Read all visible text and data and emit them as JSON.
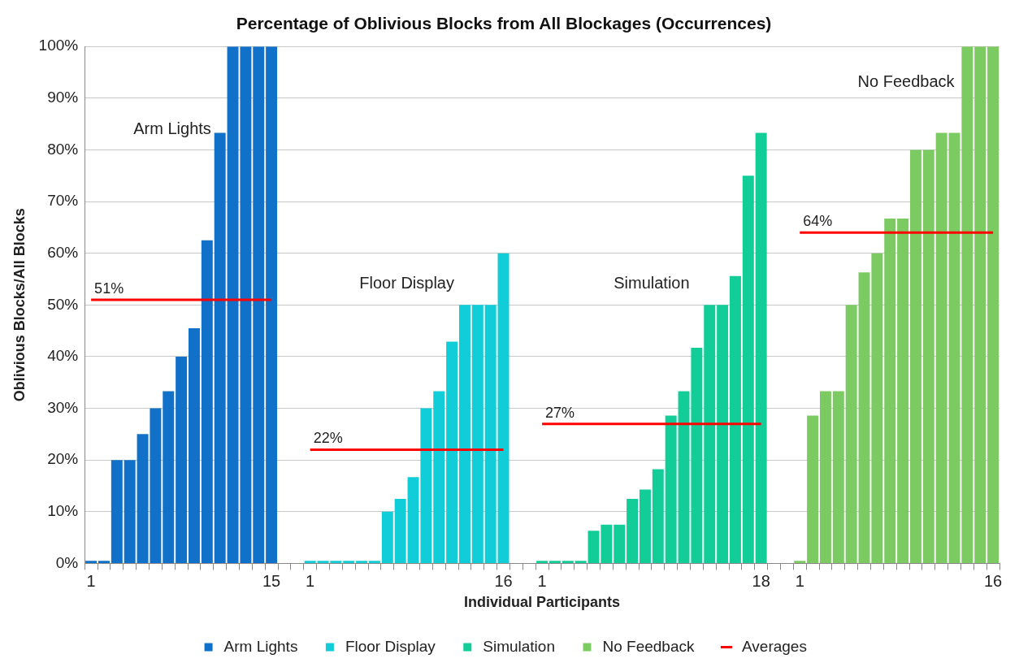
{
  "chart_data": {
    "type": "bar",
    "title": "Percentage of Oblivious Blocks from All Blockages (Occurrences)",
    "xlabel": "Individual Participants",
    "ylabel": "Oblivious Blocks/All Blocks",
    "categories": [
      "1",
      null,
      null,
      null,
      null,
      null,
      null,
      null,
      null,
      null,
      null,
      null,
      null,
      null,
      "15",
      null,
      null,
      "1",
      null,
      null,
      null,
      null,
      null,
      null,
      null,
      null,
      null,
      null,
      null,
      null,
      null,
      null,
      "16",
      null,
      null,
      "1",
      null,
      null,
      null,
      null,
      null,
      null,
      null,
      null,
      null,
      null,
      null,
      null,
      null,
      null,
      null,
      null,
      "18",
      null,
      null,
      "1",
      null,
      null,
      null,
      null,
      null,
      null,
      null,
      null,
      null,
      null,
      null,
      null,
      null,
      null,
      "16"
    ],
    "series": [
      {
        "name": "Arm Lights",
        "color": "#1170c8",
        "values": [
          0.5,
          0.5,
          20,
          20,
          25,
          30,
          33.3,
          40,
          45.5,
          62.5,
          83.3,
          100,
          100,
          100,
          100,
          null,
          null,
          null,
          null,
          null,
          null,
          null,
          null,
          null,
          null,
          null,
          null,
          null,
          null,
          null,
          null,
          null,
          null,
          null,
          null,
          null,
          null,
          null,
          null,
          null,
          null,
          null,
          null,
          null,
          null,
          null,
          null,
          null,
          null,
          null,
          null,
          null,
          null,
          null,
          null,
          null,
          null,
          null,
          null,
          null,
          null,
          null,
          null,
          null,
          null,
          null,
          null,
          null,
          null,
          null,
          null
        ]
      },
      {
        "name": "Floor Display",
        "color": "#10cdd8",
        "values": [
          null,
          null,
          null,
          null,
          null,
          null,
          null,
          null,
          null,
          null,
          null,
          null,
          null,
          null,
          null,
          null,
          null,
          0.5,
          0.5,
          0.5,
          0.5,
          0.5,
          0.5,
          10,
          12.5,
          16.7,
          30,
          33.3,
          42.9,
          50,
          50,
          50,
          60,
          null,
          null,
          null,
          null,
          null,
          null,
          null,
          null,
          null,
          null,
          null,
          null,
          null,
          null,
          null,
          null,
          null,
          null,
          null,
          null,
          null,
          null,
          null,
          null,
          null,
          null,
          null,
          null,
          null,
          null,
          null,
          null,
          null,
          null,
          null,
          null,
          null,
          null
        ]
      },
      {
        "name": "Simulation",
        "color": "#12cd98",
        "values": [
          null,
          null,
          null,
          null,
          null,
          null,
          null,
          null,
          null,
          null,
          null,
          null,
          null,
          null,
          null,
          null,
          null,
          null,
          null,
          null,
          null,
          null,
          null,
          null,
          null,
          null,
          null,
          null,
          null,
          null,
          null,
          null,
          null,
          null,
          null,
          0.5,
          0.5,
          0.5,
          0.5,
          6.3,
          7.5,
          7.5,
          12.5,
          14.3,
          18.2,
          28.6,
          33.3,
          41.7,
          50,
          50,
          55.6,
          75,
          83.3,
          null,
          null,
          null,
          null,
          null,
          null,
          null,
          null,
          null,
          null,
          null,
          null,
          null,
          null,
          null,
          null,
          null,
          null
        ]
      },
      {
        "name": "No Feedback",
        "color": "#7cca62",
        "values": [
          null,
          null,
          null,
          null,
          null,
          null,
          null,
          null,
          null,
          null,
          null,
          null,
          null,
          null,
          null,
          null,
          null,
          null,
          null,
          null,
          null,
          null,
          null,
          null,
          null,
          null,
          null,
          null,
          null,
          null,
          null,
          null,
          null,
          null,
          null,
          null,
          null,
          null,
          null,
          null,
          null,
          null,
          null,
          null,
          null,
          null,
          null,
          null,
          null,
          null,
          null,
          null,
          null,
          null,
          null,
          0.5,
          28.6,
          33.3,
          33.3,
          50,
          56.3,
          60,
          66.7,
          66.7,
          80,
          80,
          83.3,
          83.3,
          100,
          100,
          100
        ]
      },
      {
        "name": "Averages",
        "type": "line",
        "color": "#ff0000",
        "values": [
          51,
          51,
          51,
          51,
          51,
          51,
          51,
          51,
          51,
          51,
          51,
          51,
          51,
          51,
          51,
          null,
          null,
          22,
          22,
          22,
          22,
          22,
          22,
          22,
          22,
          22,
          22,
          22,
          22,
          22,
          22,
          22,
          22,
          null,
          null,
          27,
          27,
          27,
          27,
          27,
          27,
          27,
          27,
          27,
          27,
          27,
          27,
          27,
          27,
          27,
          27,
          27,
          27,
          null,
          null,
          64,
          64,
          64,
          64,
          64,
          64,
          64,
          64,
          64,
          64,
          64,
          64,
          64,
          64,
          64,
          64
        ],
        "value_labels": [
          "51%",
          null,
          null,
          null,
          null,
          null,
          null,
          null,
          null,
          null,
          null,
          null,
          null,
          null,
          null,
          null,
          null,
          "22%",
          null,
          null,
          null,
          null,
          null,
          null,
          null,
          null,
          null,
          null,
          null,
          null,
          null,
          null,
          null,
          null,
          null,
          "27%",
          null,
          null,
          null,
          null,
          null,
          null,
          null,
          null,
          null,
          null,
          null,
          null,
          null,
          null,
          null,
          null,
          null,
          null,
          null,
          "64%",
          null,
          null,
          null,
          null,
          null,
          null,
          null,
          null,
          null,
          null,
          null,
          null,
          null,
          null,
          null
        ]
      }
    ],
    "annotations": [
      "Arm Lights",
      "Floor Display",
      "Simulation",
      "No Feedback"
    ],
    "ylim": [
      0,
      100
    ],
    "yticks": [
      {
        "value": 0,
        "label": "0%"
      },
      {
        "value": 10,
        "label": "10%"
      },
      {
        "value": 20,
        "label": "20%"
      },
      {
        "value": 30,
        "label": "30%"
      },
      {
        "value": 40,
        "label": "40%"
      },
      {
        "value": 50,
        "label": "50%"
      },
      {
        "value": 60,
        "label": "60%"
      },
      {
        "value": 70,
        "label": "70%"
      },
      {
        "value": 80,
        "label": "80%"
      },
      {
        "value": 90,
        "label": "90%"
      },
      {
        "value": 100,
        "label": "100%"
      }
    ],
    "grid": "y",
    "legend": "bottom",
    "line_style": "solid"
  }
}
